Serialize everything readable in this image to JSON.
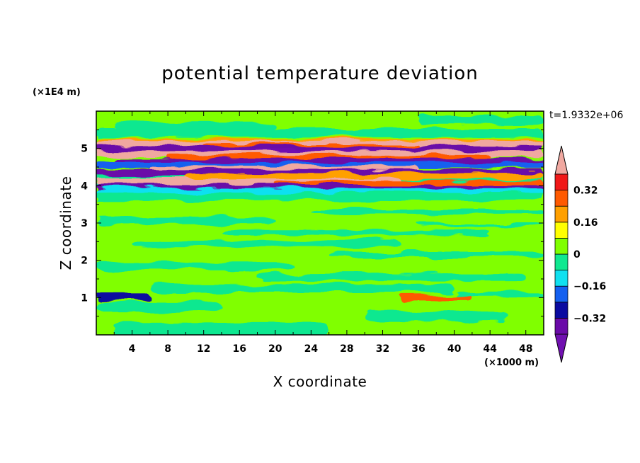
{
  "chart_data": {
    "type": "heatmap",
    "title": "potential temperature deviation",
    "xlabel": "X coordinate",
    "ylabel": "Z coordinate",
    "x_unit": "(×1000 m)",
    "y_unit": "(×1E4 m)",
    "time_label": "t=1.9332e+06",
    "xlim": [
      0,
      50
    ],
    "ylim": [
      0,
      6
    ],
    "x_ticks": [
      "4",
      "8",
      "12",
      "16",
      "20",
      "24",
      "28",
      "32",
      "36",
      "40",
      "44",
      "48"
    ],
    "y_ticks": [
      "1",
      "2",
      "3",
      "4",
      "5"
    ],
    "colorbar": {
      "levels": [
        -0.4,
        -0.32,
        -0.24,
        -0.16,
        -0.08,
        0,
        0.08,
        0.16,
        0.24,
        0.32,
        0.4
      ],
      "labels": [
        "−0.32",
        "−0.16",
        "0",
        "0.16",
        "0.32"
      ],
      "colors": [
        "#6a0aa8",
        "#0a0aa0",
        "#1460f0",
        "#10e0f0",
        "#10e890",
        "#80ff00",
        "#ffff00",
        "#ffa000",
        "#ff5a00",
        "#f01818"
      ],
      "under_color": "#7010b0",
      "over_color": "#f0a8a0"
    },
    "bands": [
      {
        "z": 5.17,
        "value": 0.18,
        "x_start": 0,
        "x_end": 50
      },
      {
        "z": 5.12,
        "value": 0.44,
        "x_start": 0,
        "x_end": 50
      },
      {
        "z": 5.05,
        "value": 0.3,
        "x_start": 12,
        "x_end": 36
      },
      {
        "z": 4.98,
        "value": -0.36,
        "x_start": 0,
        "x_end": 50
      },
      {
        "z": 4.92,
        "value": -0.42,
        "x_start": 14,
        "x_end": 32
      },
      {
        "z": 4.85,
        "value": 0.44,
        "x_start": 0,
        "x_end": 50
      },
      {
        "z": 4.75,
        "value": 0.3,
        "x_start": 8,
        "x_end": 44
      },
      {
        "z": 4.65,
        "value": -0.38,
        "x_start": 2,
        "x_end": 50
      },
      {
        "z": 4.55,
        "value": -0.2,
        "x_start": 0,
        "x_end": 50
      },
      {
        "z": 4.45,
        "value": 0.44,
        "x_start": 6,
        "x_end": 36
      },
      {
        "z": 4.35,
        "value": -0.35,
        "x_start": 0,
        "x_end": 50
      },
      {
        "z": 4.25,
        "value": 0.2,
        "x_start": 10,
        "x_end": 50
      },
      {
        "z": 4.12,
        "value": 0.44,
        "x_start": 0,
        "x_end": 34
      },
      {
        "z": 4.05,
        "value": 0.3,
        "x_start": 20,
        "x_end": 50
      },
      {
        "z": 3.95,
        "value": -0.36,
        "x_start": 0,
        "x_end": 50
      },
      {
        "z": 3.85,
        "value": -0.14,
        "x_start": 0,
        "x_end": 50
      },
      {
        "z": 3.72,
        "value": -0.02,
        "x_start": 0,
        "x_end": 50
      },
      {
        "z": 1.0,
        "value": -0.3,
        "x_start": 0,
        "x_end": 6
      },
      {
        "z": 0.97,
        "value": 0.3,
        "x_start": 34,
        "x_end": 42
      }
    ]
  }
}
